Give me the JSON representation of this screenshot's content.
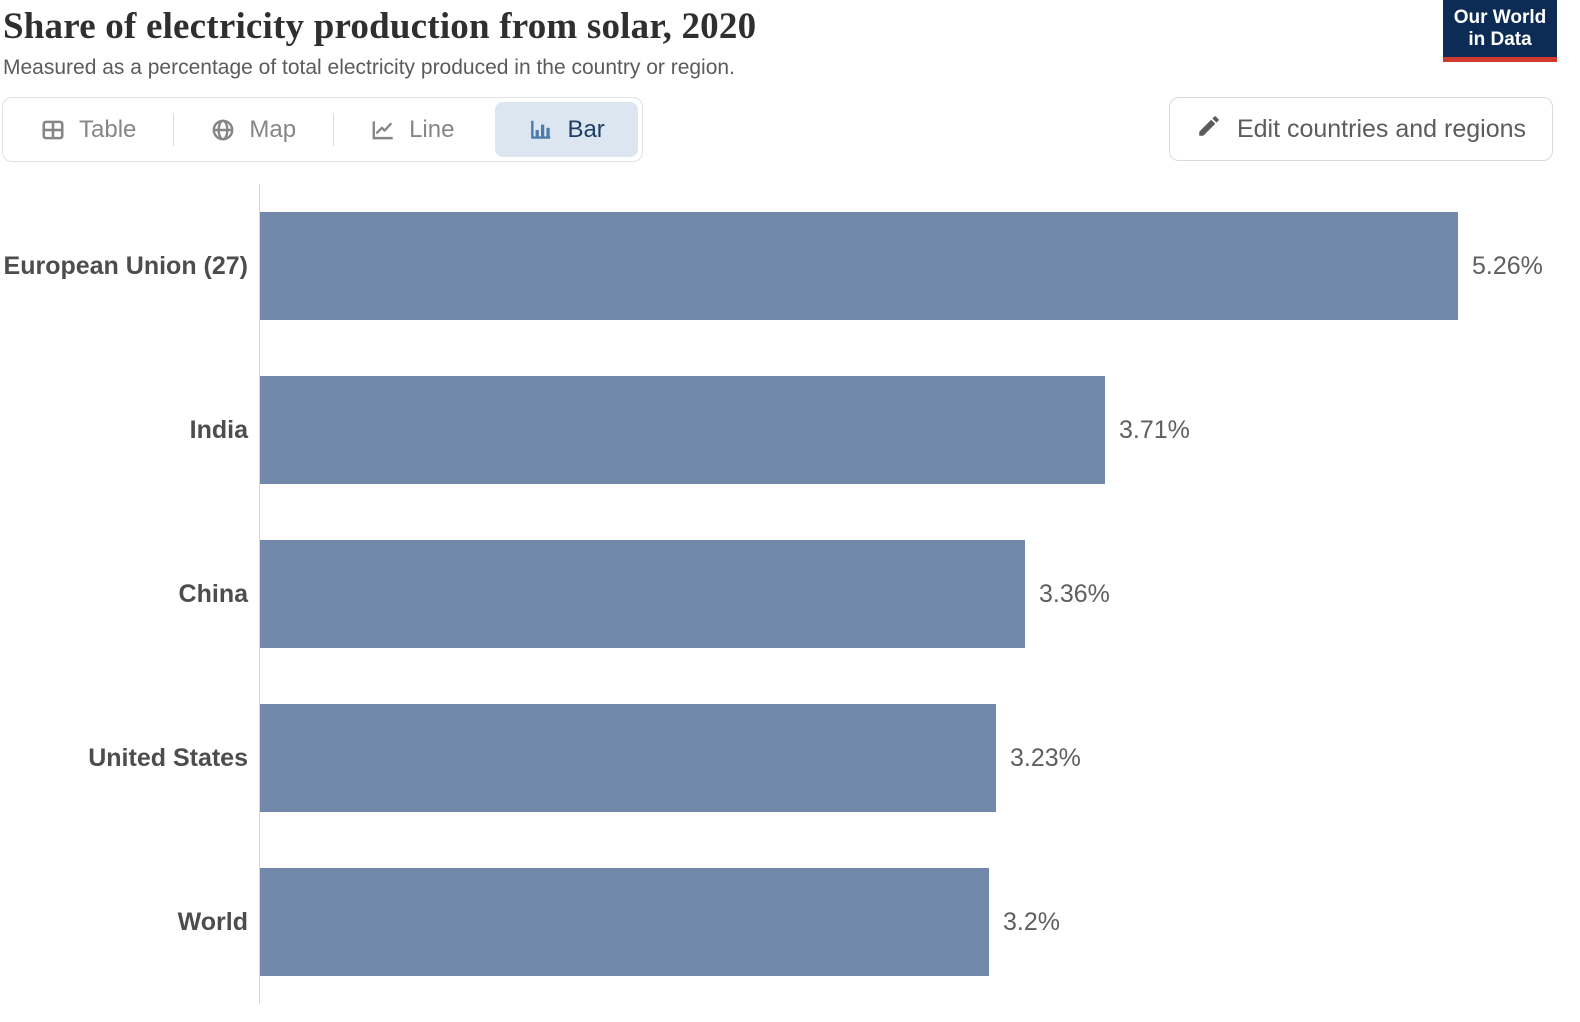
{
  "header": {
    "title": "Share of electricity production from solar, 2020",
    "subtitle": "Measured as a percentage of total electricity produced in the country or region.",
    "logo": {
      "line1": "Our World",
      "line2": "in Data"
    }
  },
  "controls": {
    "tabs": [
      {
        "label": "Table",
        "icon": "table-icon",
        "selected": false
      },
      {
        "label": "Map",
        "icon": "globe-icon",
        "selected": false
      },
      {
        "label": "Line",
        "icon": "line-chart-icon",
        "selected": false
      },
      {
        "label": "Bar",
        "icon": "bar-chart-icon",
        "selected": true
      }
    ],
    "edit_button": {
      "label": "Edit countries and regions",
      "icon": "pencil-icon"
    }
  },
  "chart_data": {
    "type": "bar",
    "orientation": "horizontal",
    "title": "Share of electricity production from solar, 2020",
    "categories": [
      "European Union (27)",
      "India",
      "China",
      "United States",
      "World"
    ],
    "values": [
      5.26,
      3.71,
      3.36,
      3.23,
      3.2
    ],
    "value_labels": [
      "5.26%",
      "3.71%",
      "3.36%",
      "3.23%",
      "3.2%"
    ],
    "unit": "%",
    "xlabel": "",
    "ylabel": "",
    "xlim": [
      0,
      5.26
    ],
    "grid": false,
    "legend": false,
    "bar_color": "#7289ab"
  },
  "colors": {
    "bar": "#7289ab",
    "tab_selected_bg": "#dbe6f1",
    "tab_selected_text": "#1d3e63",
    "tab_selected_icon": "#4d7bab",
    "logo_navy": "#0d2c55",
    "logo_red": "#d0392e"
  }
}
